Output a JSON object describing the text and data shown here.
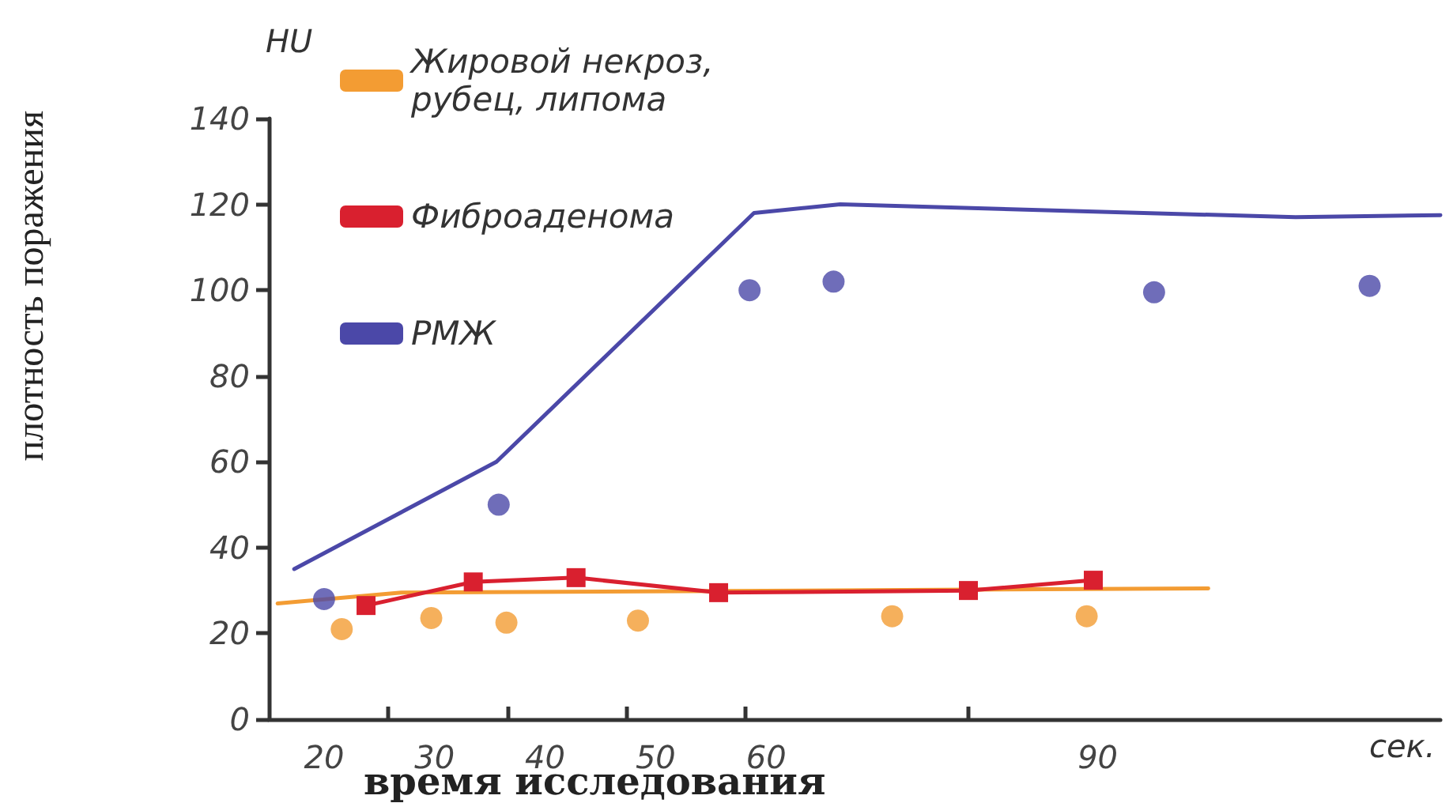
{
  "chart_data": {
    "type": "line",
    "xlabel": "время исследования",
    "ylabel": "плотность поражения",
    "annotations": [
      "HU",
      "сек."
    ],
    "xlim": [
      15,
      121
    ],
    "xticks": [
      20,
      {
        "value": 25.7,
        "label": null
      },
      30,
      {
        "value": 36.6,
        "label": null
      },
      40,
      {
        "value": 47.3,
        "label": null
      },
      50,
      {
        "value": 58.1,
        "label": null
      },
      60,
      {
        "value": 78.3,
        "label": null
      },
      90
    ],
    "ylim": [
      0,
      140
    ],
    "yticks": [
      0,
      20,
      40,
      60,
      80,
      100,
      120,
      140
    ],
    "grid": false,
    "legend": "top left",
    "series": [
      {
        "name": "Жировой некроз,\nрубец, липома",
        "marker": "none",
        "color": "#f39c33",
        "x": [
          15.8,
          27,
          100
        ],
        "values": [
          27,
          29.5,
          30.5
        ]
      },
      {
        "type": "scatter",
        "marker": "circle",
        "color": "#f39c33",
        "x": [
          21.6,
          29.7,
          36.5,
          48.4,
          71.4,
          89
        ],
        "values": [
          21,
          23.6,
          22.5,
          23,
          24,
          24
        ]
      },
      {
        "name": "Фиброаденома",
        "marker": "square",
        "color": "#d9202f",
        "x": [
          23.8,
          33.5,
          42.8,
          55.7,
          78.3,
          89.6
        ],
        "values": [
          26.5,
          32,
          33,
          29.5,
          30,
          32.4
        ]
      },
      {
        "name": "РМЖ",
        "marker": "none",
        "color": "#4b48a8",
        "x": [
          17.3,
          35.6,
          58.9,
          66.7,
          107.9,
          121
        ],
        "values": [
          35,
          60,
          118,
          120,
          117,
          117.5
        ]
      },
      {
        "type": "scatter",
        "marker": "circle",
        "color": "#4b48a8",
        "x": [
          20,
          35.8,
          58.5,
          66.1,
          95.1,
          114.6
        ],
        "values": [
          28,
          50,
          100,
          102,
          99.5,
          101
        ]
      }
    ]
  }
}
